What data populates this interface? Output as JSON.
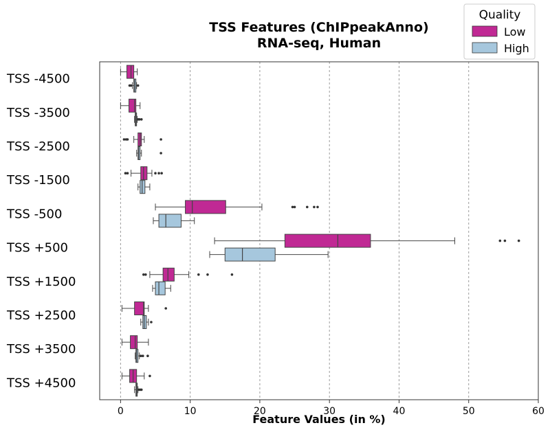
{
  "chart_data": {
    "type": "boxplot",
    "orientation": "horizontal",
    "title": "TSS Features (ChIPpeakAnno)",
    "subtitle": "RNA-seq, Human",
    "xlabel": "Feature Values (in %)",
    "xlim": [
      -3,
      60
    ],
    "xticks": [
      0,
      10,
      20,
      30,
      40,
      50,
      60
    ],
    "grid": "vertical dashed",
    "categories": [
      "TSS -4500",
      "TSS -3500",
      "TSS -2500",
      "TSS -1500",
      "TSS -500",
      "TSS +500",
      "TSS +1500",
      "TSS +2500",
      "TSS +3500",
      "TSS +4500"
    ],
    "legend": {
      "title": "Quality",
      "position": "top-right"
    },
    "series": [
      {
        "name": "Low",
        "color": "#c02994",
        "boxes": [
          {
            "whisker_low": 0.0,
            "q1": 0.9,
            "median": 1.5,
            "q3": 1.9,
            "whisker_high": 2.4,
            "outliers": []
          },
          {
            "whisker_low": 0.0,
            "q1": 1.2,
            "median": 2.0,
            "q3": 2.2,
            "whisker_high": 2.8,
            "outliers": []
          },
          {
            "whisker_low": 1.9,
            "q1": 2.5,
            "median": 2.8,
            "q3": 3.0,
            "whisker_high": 3.4,
            "outliers": [
              0.5,
              0.8,
              1.0,
              5.8
            ]
          },
          {
            "whisker_low": 1.5,
            "q1": 2.9,
            "median": 3.3,
            "q3": 3.8,
            "whisker_high": 4.5,
            "outliers": [
              0.7,
              1.0,
              5.0,
              5.5,
              5.9
            ]
          },
          {
            "whisker_low": 5.0,
            "q1": 9.3,
            "median": 10.3,
            "q3": 15.1,
            "whisker_high": 20.3,
            "outliers": [
              24.7,
              25.0,
              26.8,
              27.8,
              28.3
            ]
          },
          {
            "whisker_low": 13.5,
            "q1": 23.6,
            "median": 31.2,
            "q3": 35.9,
            "whisker_high": 48.0,
            "outliers": [
              54.5,
              55.2,
              57.2
            ]
          },
          {
            "whisker_low": 4.2,
            "q1": 6.1,
            "median": 6.8,
            "q3": 7.7,
            "whisker_high": 9.8,
            "outliers": [
              3.3,
              3.6,
              11.2,
              12.5,
              16.0
            ]
          },
          {
            "whisker_low": 0.2,
            "q1": 2.0,
            "median": 3.3,
            "q3": 3.4,
            "whisker_high": 4.0,
            "outliers": [
              6.5
            ]
          },
          {
            "whisker_low": 0.2,
            "q1": 1.4,
            "median": 2.1,
            "q3": 2.4,
            "whisker_high": 4.0,
            "outliers": []
          },
          {
            "whisker_low": 0.2,
            "q1": 1.3,
            "median": 1.8,
            "q3": 2.3,
            "whisker_high": 3.4,
            "outliers": [
              4.2
            ]
          }
        ]
      },
      {
        "name": "High",
        "color": "#a6c7dd",
        "boxes": [
          {
            "whisker_low": 1.7,
            "q1": 1.9,
            "median": 2.0,
            "q3": 2.2,
            "whisker_high": 2.3,
            "outliers": [
              1.3,
              1.5,
              2.5
            ]
          },
          {
            "whisker_low": 2.0,
            "q1": 2.1,
            "median": 2.2,
            "q3": 2.3,
            "whisker_high": 2.4,
            "outliers": [
              2.5,
              2.7,
              3.0
            ]
          },
          {
            "whisker_low": 2.3,
            "q1": 2.5,
            "median": 2.6,
            "q3": 2.8,
            "whisker_high": 3.0,
            "outliers": [
              5.8
            ]
          },
          {
            "whisker_low": 2.5,
            "q1": 2.8,
            "median": 3.1,
            "q3": 3.5,
            "whisker_high": 4.2,
            "outliers": []
          },
          {
            "whisker_low": 4.7,
            "q1": 5.5,
            "median": 6.5,
            "q3": 8.7,
            "whisker_high": 10.6,
            "outliers": []
          },
          {
            "whisker_low": 12.8,
            "q1": 15.0,
            "median": 17.5,
            "q3": 22.2,
            "whisker_high": 29.8,
            "outliers": []
          },
          {
            "whisker_low": 4.6,
            "q1": 5.0,
            "median": 5.5,
            "q3": 6.4,
            "whisker_high": 7.2,
            "outliers": []
          },
          {
            "whisker_low": 2.9,
            "q1": 3.2,
            "median": 3.4,
            "q3": 3.7,
            "whisker_high": 4.0,
            "outliers": [
              4.4
            ]
          },
          {
            "whisker_low": 2.1,
            "q1": 2.2,
            "median": 2.3,
            "q3": 2.5,
            "whisker_high": 2.7,
            "outliers": [
              2.9,
              3.2,
              3.9
            ]
          },
          {
            "whisker_low": 2.0,
            "q1": 2.2,
            "median": 2.3,
            "q3": 2.4,
            "whisker_high": 2.5,
            "outliers": [
              2.6,
              2.8,
              3.0
            ]
          }
        ]
      }
    ]
  }
}
